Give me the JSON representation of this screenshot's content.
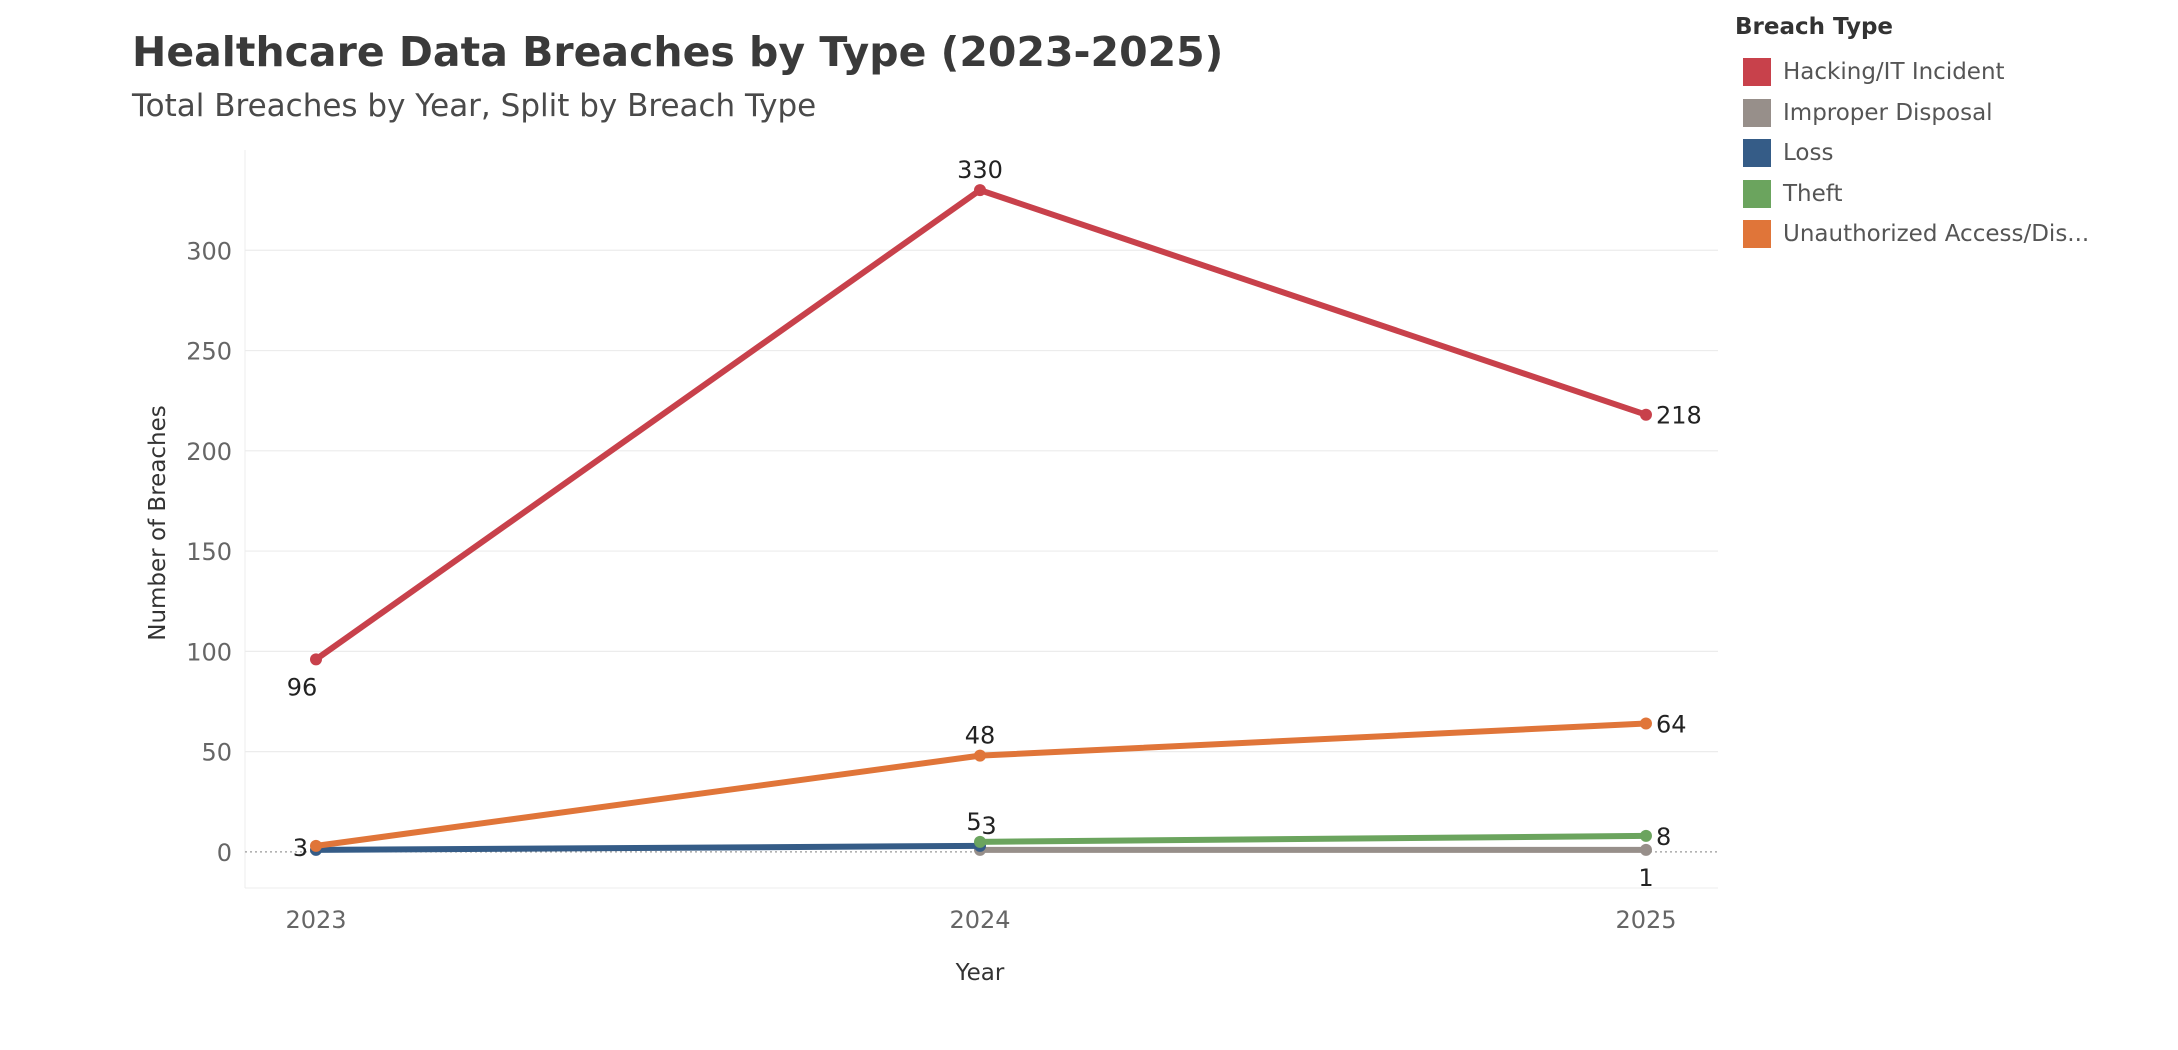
{
  "chart_data": {
    "type": "line",
    "title": "Healthcare Data Breaches by Type (2023-2025)",
    "subtitle": "Total Breaches by Year, Split by Breach Type",
    "xlabel": "Year",
    "ylabel": "Number of Breaches",
    "x": [
      "2023",
      "2024",
      "2025"
    ],
    "yticks": [
      0,
      50,
      100,
      150,
      200,
      250,
      300
    ],
    "ylim": [
      -18,
      350
    ],
    "grid": true,
    "legend_position": "top-right",
    "legend_title": "Breach Type",
    "series": [
      {
        "name": "Hacking/IT Incident",
        "color": "#c8414b",
        "values": [
          96,
          330,
          218
        ],
        "labels": [
          "96",
          "330",
          "218"
        ],
        "label_pos": [
          "below",
          "above",
          "right"
        ]
      },
      {
        "name": "Improper Disposal",
        "color": "#978f8a",
        "values": [
          null,
          1,
          1
        ],
        "labels": [
          null,
          null,
          "1"
        ],
        "label_pos": [
          null,
          null,
          "below"
        ]
      },
      {
        "name": "Loss",
        "color": "#355c87",
        "values": [
          1,
          3,
          null
        ],
        "labels": [
          null,
          "3",
          null
        ],
        "label_pos": [
          null,
          "above-right",
          null
        ]
      },
      {
        "name": "Theft",
        "color": "#6ba45e",
        "values": [
          null,
          5,
          8
        ],
        "labels": [
          null,
          "5",
          "8"
        ],
        "label_pos": [
          null,
          "above-left",
          "right"
        ]
      },
      {
        "name": "Unauthorized Access/Dis...",
        "color": "#e07539",
        "values": [
          3,
          48,
          64
        ],
        "labels": [
          "3",
          "48",
          "64"
        ],
        "label_pos": [
          "left",
          "above",
          "right"
        ]
      }
    ]
  }
}
